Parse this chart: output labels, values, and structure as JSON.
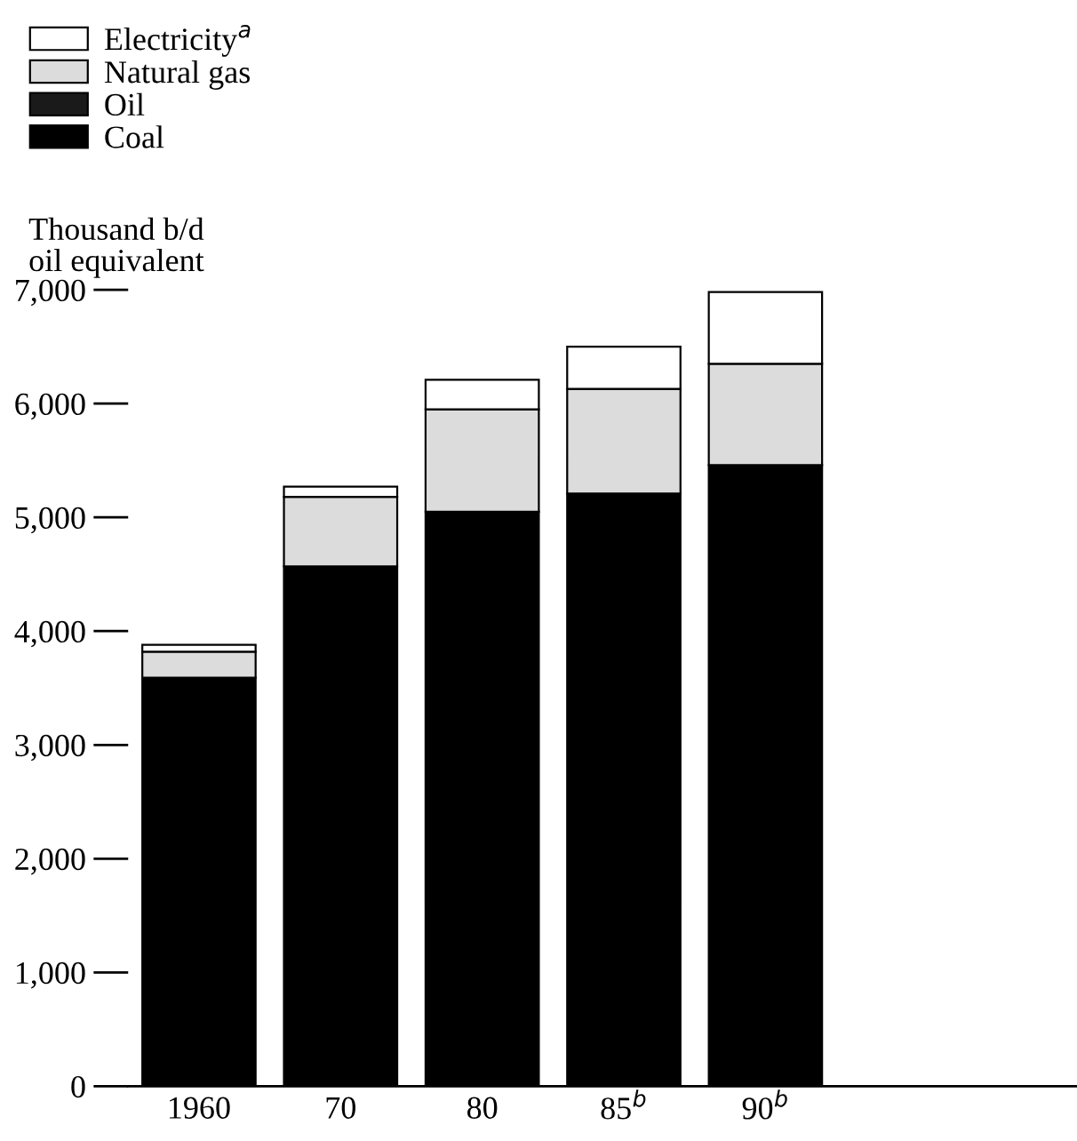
{
  "chart_data": {
    "type": "bar",
    "stacked": true,
    "ylabel": "Thousand b/d\noil equivalent",
    "categories": [
      "1960",
      "70",
      "80",
      "85$^{b}$",
      "90$^{b}$"
    ],
    "series": [
      {
        "name": "Coal",
        "color": "#000000",
        "values": [
          3590,
          4570,
          5050,
          5210,
          5460
        ]
      },
      {
        "name": "Oil",
        "color": "#1a1a1a",
        "values": [
          0,
          0,
          0,
          0,
          0
        ]
      },
      {
        "name": "Natural gas",
        "color": "#dcdcdc",
        "values": [
          230,
          610,
          900,
          920,
          890
        ]
      },
      {
        "name": "Electricity$^{a}$",
        "color": "#ffffff",
        "values": [
          60,
          90,
          260,
          370,
          630
        ]
      }
    ],
    "ylim": [
      0,
      7000
    ],
    "yticks": [
      {
        "value": 0,
        "label": "0"
      },
      {
        "value": 1000,
        "label": "1,000"
      },
      {
        "value": 2000,
        "label": "2,000"
      },
      {
        "value": 3000,
        "label": "3,000"
      },
      {
        "value": 4000,
        "label": "4,000"
      },
      {
        "value": 5000,
        "label": "5,000"
      },
      {
        "value": 6000,
        "label": "6,000"
      },
      {
        "value": 7000,
        "label": "7,000"
      }
    ],
    "legend": "top left",
    "grid": false
  }
}
